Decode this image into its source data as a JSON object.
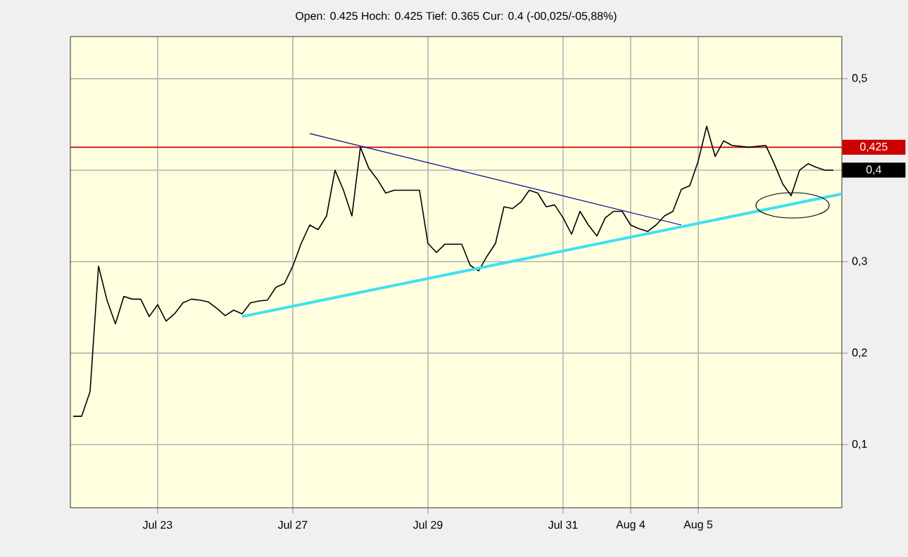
{
  "chart_data": {
    "type": "line",
    "subtitle": "Open: 0.425 Hoch: 0.425 Tief: 0.365 Cur: 0.4 (-00,025/-05,88%)",
    "categories": [
      null,
      null,
      null,
      null,
      null,
      null,
      null,
      null,
      null,
      null,
      "Jul 23",
      null,
      null,
      null,
      null,
      null,
      null,
      null,
      null,
      null,
      null,
      null,
      null,
      null,
      null,
      null,
      "Jul 27",
      null,
      null,
      null,
      null,
      null,
      null,
      null,
      null,
      null,
      null,
      null,
      null,
      null,
      null,
      null,
      "Jul 29",
      null,
      null,
      null,
      null,
      null,
      null,
      null,
      null,
      null,
      null,
      null,
      null,
      null,
      null,
      null,
      "Jul 31",
      null,
      null,
      null,
      null,
      null,
      null,
      null,
      "Aug 4",
      null,
      null,
      null,
      null,
      null,
      null,
      null,
      "Aug 5",
      null,
      null,
      null,
      null,
      null,
      null,
      null,
      null,
      null,
      null,
      null,
      null,
      null,
      null,
      null,
      null,
      null
    ],
    "ylim": [
      0.031,
      0.546
    ],
    "yticks": [
      {
        "value": 0.1,
        "label": "0,1"
      },
      {
        "value": 0.2,
        "label": "0,2"
      },
      {
        "value": 0.3,
        "label": "0,3"
      },
      {
        "value": 0.4,
        "label": null
      },
      {
        "value": 0.5,
        "label": "0,5"
      }
    ],
    "grid": true,
    "marker": "none",
    "line_style": "solid",
    "series": [
      {
        "color": "#000000",
        "values": [
          0.131,
          0.131,
          0.158,
          0.295,
          0.258,
          0.232,
          0.262,
          0.259,
          0.259,
          0.24,
          0.253,
          0.235,
          0.243,
          0.255,
          0.259,
          0.258,
          0.256,
          0.249,
          0.241,
          0.247,
          0.243,
          0.255,
          0.257,
          0.258,
          0.272,
          0.276,
          0.295,
          0.32,
          0.34,
          0.335,
          0.35,
          0.4,
          0.378,
          0.35,
          0.425,
          0.402,
          0.39,
          0.375,
          0.378,
          0.378,
          0.378,
          0.378,
          0.32,
          0.31,
          0.319,
          0.319,
          0.319,
          0.296,
          0.29,
          0.306,
          0.32,
          0.36,
          0.358,
          0.365,
          0.378,
          0.375,
          0.36,
          0.362,
          0.348,
          0.33,
          0.355,
          0.34,
          0.328,
          0.348,
          0.355,
          0.355,
          0.34,
          0.336,
          0.333,
          0.34,
          0.35,
          0.355,
          0.379,
          0.383,
          0.41,
          0.448,
          0.415,
          0.432,
          0.427,
          0.426,
          0.425,
          0.426,
          0.427,
          0.407,
          0.385,
          0.372,
          0.4,
          0.407,
          0.403,
          0.4,
          0.4,
          null
        ]
      },
      {
        "color": "#00008b",
        "values": [
          null,
          null,
          null,
          null,
          null,
          null,
          null,
          null,
          null,
          null,
          null,
          null,
          null,
          null,
          null,
          null,
          null,
          null,
          null,
          null,
          null,
          null,
          null,
          null,
          null,
          null,
          null,
          null,
          0.44,
          null,
          null,
          null,
          null,
          null,
          null,
          null,
          null,
          null,
          null,
          null,
          null,
          null,
          null,
          null,
          null,
          null,
          null,
          null,
          null,
          null,
          null,
          null,
          null,
          null,
          null,
          null,
          null,
          null,
          null,
          null,
          null,
          null,
          null,
          null,
          null,
          null,
          null,
          null,
          null,
          null,
          null,
          null,
          0.34,
          null,
          null,
          null,
          null,
          null,
          null,
          null,
          null,
          null,
          null,
          null,
          null,
          null,
          null,
          null,
          null,
          null,
          null,
          null
        ]
      },
      {
        "color": "#40e0f0",
        "values": [
          null,
          null,
          null,
          null,
          null,
          null,
          null,
          null,
          null,
          null,
          null,
          null,
          null,
          null,
          null,
          null,
          null,
          null,
          null,
          null,
          0.24,
          null,
          null,
          null,
          null,
          null,
          null,
          null,
          null,
          null,
          null,
          null,
          null,
          null,
          null,
          null,
          null,
          null,
          null,
          null,
          null,
          null,
          null,
          null,
          null,
          null,
          null,
          null,
          null,
          null,
          null,
          null,
          null,
          null,
          null,
          null,
          null,
          null,
          null,
          null,
          null,
          null,
          null,
          null,
          null,
          null,
          null,
          null,
          null,
          null,
          null,
          null,
          null,
          null,
          null,
          null,
          null,
          null,
          null,
          null,
          null,
          null,
          null,
          null,
          null,
          null,
          null,
          null,
          null,
          null,
          null,
          0.374
        ]
      }
    ],
    "ref_lines": [
      {
        "axis": "y",
        "value": 0.425,
        "label": "0,425",
        "color": "#cc0000"
      }
    ],
    "annotations": [
      "0,4"
    ]
  }
}
